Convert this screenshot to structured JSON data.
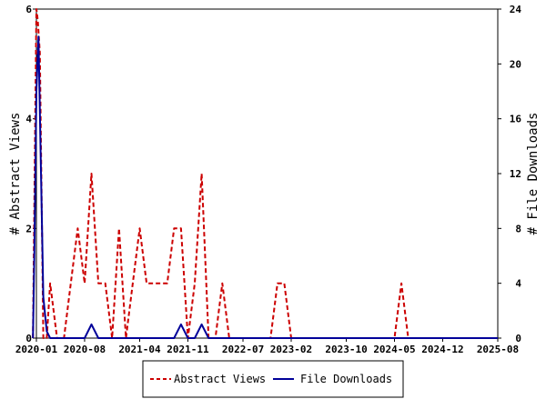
{
  "chart_data": {
    "type": "line",
    "y_left_label": "# Abstract Views",
    "y_right_label": "# File Downloads",
    "y_left_range": [
      0,
      6
    ],
    "y_right_range": [
      0,
      24
    ],
    "y_left_ticks": [
      "0",
      "2",
      "4",
      "6"
    ],
    "y_right_ticks": [
      "0",
      "4",
      "8",
      "12",
      "16",
      "20",
      "24"
    ],
    "x_range": [
      0,
      67
    ],
    "x_ticks": [
      {
        "label": "2020-01",
        "index": 0
      },
      {
        "label": "2020-08",
        "index": 7
      },
      {
        "label": "2021-04",
        "index": 15
      },
      {
        "label": "2021-11",
        "index": 22
      },
      {
        "label": "2022-07",
        "index": 30
      },
      {
        "label": "2023-02",
        "index": 37
      },
      {
        "label": "2023-10",
        "index": 45
      },
      {
        "label": "2024-05",
        "index": 52
      },
      {
        "label": "2024-12",
        "index": 59
      },
      {
        "label": "2025-08",
        "index": 67
      }
    ],
    "legend": "bottom-center",
    "series": [
      {
        "name": "Abstract Views",
        "color": "#cc0000",
        "dash": "dashed",
        "axis": "left",
        "points": [
          [
            -0.5,
            0
          ],
          [
            0,
            6
          ],
          [
            0.2,
            5.8
          ],
          [
            0.5,
            5.2
          ],
          [
            1,
            0
          ],
          [
            1.5,
            0
          ],
          [
            2,
            1
          ],
          [
            3,
            0
          ],
          [
            4,
            0
          ],
          [
            5,
            1
          ],
          [
            6,
            2
          ],
          [
            7,
            1
          ],
          [
            8,
            3
          ],
          [
            9,
            1
          ],
          [
            10,
            1
          ],
          [
            11,
            0
          ],
          [
            12,
            2
          ],
          [
            13,
            0
          ],
          [
            14,
            1
          ],
          [
            15,
            2
          ],
          [
            16,
            1
          ],
          [
            17,
            1
          ],
          [
            18,
            1
          ],
          [
            19,
            1
          ],
          [
            20,
            2
          ],
          [
            21,
            2
          ],
          [
            22,
            0
          ],
          [
            23,
            1
          ],
          [
            24,
            3
          ],
          [
            25,
            0
          ],
          [
            26,
            0
          ],
          [
            27,
            1
          ],
          [
            28,
            0
          ],
          [
            29,
            0
          ],
          [
            30,
            0
          ],
          [
            31,
            0
          ],
          [
            32,
            0
          ],
          [
            33,
            0
          ],
          [
            34,
            0
          ],
          [
            35,
            1
          ],
          [
            36,
            1
          ],
          [
            37,
            0
          ],
          [
            38,
            0
          ],
          [
            39,
            0
          ],
          [
            40,
            0
          ],
          [
            41,
            0
          ],
          [
            42,
            0
          ],
          [
            43,
            0
          ],
          [
            44,
            0
          ],
          [
            45,
            0
          ],
          [
            46,
            0
          ],
          [
            47,
            0
          ],
          [
            48,
            0
          ],
          [
            49,
            0
          ],
          [
            50,
            0
          ],
          [
            51,
            0
          ],
          [
            52,
            0
          ],
          [
            53,
            1
          ],
          [
            54,
            0
          ],
          [
            55,
            0
          ],
          [
            56,
            0
          ],
          [
            57,
            0
          ],
          [
            58,
            0
          ],
          [
            59,
            0
          ],
          [
            60,
            0
          ],
          [
            61,
            0
          ],
          [
            62,
            0
          ],
          [
            63,
            0
          ],
          [
            64,
            0
          ],
          [
            65,
            0
          ],
          [
            66,
            0
          ],
          [
            67,
            0
          ]
        ]
      },
      {
        "name": "File Downloads",
        "color": "#000099",
        "dash": "solid",
        "axis": "right",
        "points": [
          [
            -0.5,
            0
          ],
          [
            -0.3,
            6
          ],
          [
            0,
            18
          ],
          [
            0.3,
            22
          ],
          [
            0.6,
            14
          ],
          [
            1,
            3
          ],
          [
            1.5,
            0.5
          ],
          [
            2,
            0
          ],
          [
            3,
            0
          ],
          [
            4,
            0
          ],
          [
            5,
            0
          ],
          [
            6,
            0
          ],
          [
            7,
            0
          ],
          [
            8,
            1
          ],
          [
            9,
            0
          ],
          [
            10,
            0
          ],
          [
            11,
            0
          ],
          [
            12,
            0
          ],
          [
            13,
            0
          ],
          [
            14,
            0
          ],
          [
            15,
            0
          ],
          [
            16,
            0
          ],
          [
            17,
            0
          ],
          [
            18,
            0
          ],
          [
            19,
            0
          ],
          [
            20,
            0
          ],
          [
            21,
            1
          ],
          [
            22,
            0
          ],
          [
            23,
            0
          ],
          [
            24,
            1
          ],
          [
            25,
            0
          ],
          [
            26,
            0
          ],
          [
            27,
            0
          ],
          [
            28,
            0
          ],
          [
            29,
            0
          ],
          [
            30,
            0
          ],
          [
            31,
            0
          ],
          [
            32,
            0
          ],
          [
            33,
            0
          ],
          [
            34,
            0
          ],
          [
            35,
            0
          ],
          [
            36,
            0
          ],
          [
            37,
            0
          ],
          [
            38,
            0
          ],
          [
            39,
            0
          ],
          [
            40,
            0
          ],
          [
            41,
            0
          ],
          [
            42,
            0
          ],
          [
            43,
            0
          ],
          [
            44,
            0
          ],
          [
            45,
            0
          ],
          [
            46,
            0
          ],
          [
            47,
            0
          ],
          [
            48,
            0
          ],
          [
            49,
            0
          ],
          [
            50,
            0
          ],
          [
            51,
            0
          ],
          [
            52,
            0
          ],
          [
            53,
            0
          ],
          [
            54,
            0
          ],
          [
            55,
            0
          ],
          [
            56,
            0
          ],
          [
            57,
            0
          ],
          [
            58,
            0
          ],
          [
            59,
            0
          ],
          [
            60,
            0
          ],
          [
            61,
            0
          ],
          [
            62,
            0
          ],
          [
            63,
            0
          ],
          [
            64,
            0
          ],
          [
            65,
            0
          ],
          [
            66,
            0
          ],
          [
            67,
            0
          ]
        ]
      }
    ]
  }
}
